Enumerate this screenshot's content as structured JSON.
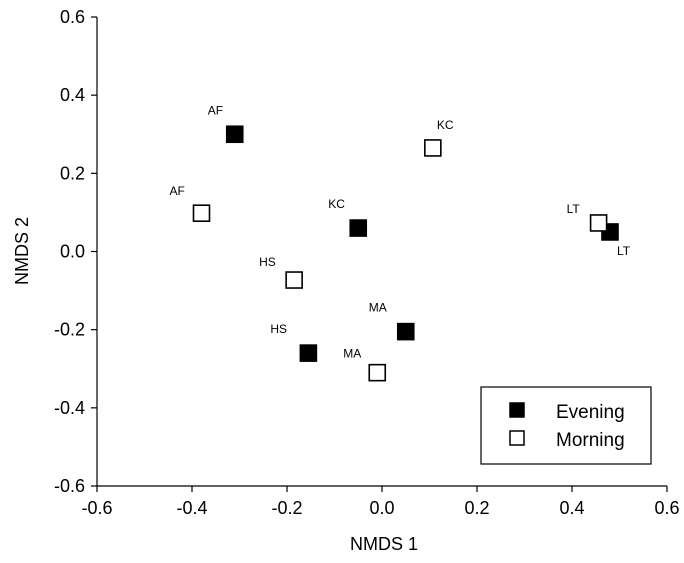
{
  "chart_data": {
    "type": "scatter",
    "title": "",
    "xlabel": "NMDS 1",
    "ylabel": "NMDS 2",
    "xlim": [
      -0.6,
      0.6
    ],
    "ylim": [
      -0.6,
      0.6
    ],
    "xticks": [
      "-0.6",
      "-0.4",
      "-0.2",
      "0.0",
      "0.2",
      "0.4",
      "0.6"
    ],
    "yticks": [
      "0.6",
      "0.4",
      "0.2",
      "0.0",
      "-0.2",
      "-0.4",
      "-0.6"
    ],
    "grid": false,
    "legend_position": "bottom-right",
    "series": [
      {
        "name": "Evening",
        "marker": "filled-square",
        "color": "#000000",
        "points": [
          {
            "label": "AF",
            "x": -0.31,
            "y": 0.3
          },
          {
            "label": "KC",
            "x": -0.05,
            "y": 0.06
          },
          {
            "label": "HS",
            "x": -0.155,
            "y": -0.26
          },
          {
            "label": "MA",
            "x": 0.05,
            "y": -0.205
          },
          {
            "label": "LT",
            "x": 0.48,
            "y": 0.05
          }
        ]
      },
      {
        "name": "Morning",
        "marker": "open-square",
        "color": "#000000",
        "points": [
          {
            "label": "AF",
            "x": -0.38,
            "y": 0.098
          },
          {
            "label": "KC",
            "x": 0.107,
            "y": 0.265
          },
          {
            "label": "HS",
            "x": -0.185,
            "y": -0.073
          },
          {
            "label": "MA",
            "x": -0.01,
            "y": -0.31
          },
          {
            "label": "LT",
            "x": 0.456,
            "y": 0.073
          }
        ]
      }
    ]
  }
}
